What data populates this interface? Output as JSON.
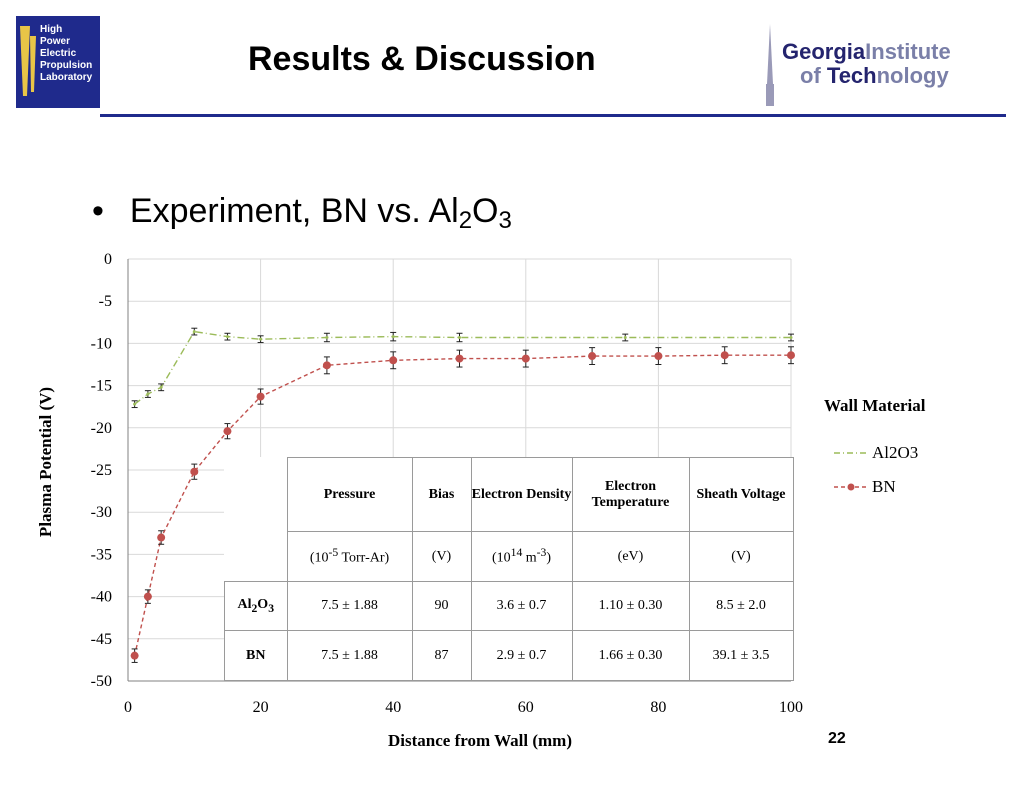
{
  "header": {
    "lab_logo_text": [
      "High",
      "Power",
      "Electric",
      "Propulsion",
      "Laboratory"
    ],
    "title": "Results & Discussion",
    "gt_logo_line1_bold": "Georgia",
    "gt_logo_line1_light": "Institute",
    "gt_logo_line2_pre": "of ",
    "gt_logo_line2_bold": "Tech",
    "gt_logo_line2_light": "nology",
    "rule_color": "#1f2a8c"
  },
  "bullet": {
    "text_pre": "Experiment, BN vs. Al",
    "sub1": "2",
    "mid": "O",
    "sub2": "3"
  },
  "page_number": "22",
  "chart_data": {
    "type": "line",
    "xlabel": "Distance from Wall (mm)",
    "ylabel": "Plasma Potential (V)",
    "xlim": [
      0,
      100
    ],
    "ylim": [
      -50,
      0
    ],
    "xticks": [
      "0",
      "20",
      "40",
      "60",
      "80",
      "100"
    ],
    "yticks": [
      "0",
      "-5",
      "-10",
      "-15",
      "-20",
      "-25",
      "-30",
      "-35",
      "-40",
      "-45",
      "-50"
    ],
    "grid": true,
    "legend_title": "Wall Material",
    "legend_position": "right",
    "series": [
      {
        "name": "Al2O3",
        "color": "#9bbb59",
        "style": "dash-dot",
        "x": [
          1,
          3,
          5,
          10,
          15,
          20,
          30,
          40,
          50,
          75,
          100
        ],
        "y": [
          -17.2,
          -16.0,
          -15.2,
          -8.6,
          -9.2,
          -9.5,
          -9.3,
          -9.2,
          -9.3,
          -9.3,
          -9.3
        ],
        "err": [
          0.4,
          0.4,
          0.4,
          0.4,
          0.4,
          0.4,
          0.5,
          0.5,
          0.5,
          0.4,
          0.4
        ],
        "extra_x": [
          60,
          70,
          80,
          90
        ],
        "extra_y": [
          -9.3,
          -9.3,
          -9.3,
          -9.3
        ]
      },
      {
        "name": "BN",
        "color": "#c0504d",
        "style": "dashed-markers",
        "x": [
          1,
          3,
          5,
          10,
          15,
          20,
          30,
          40,
          50,
          60,
          70,
          80,
          90,
          100
        ],
        "y": [
          -47.0,
          -40.0,
          -33.0,
          -25.2,
          -20.4,
          -16.3,
          -12.6,
          -12.0,
          -11.8,
          -11.8,
          -11.5,
          -11.5,
          -11.4,
          -11.4
        ],
        "err": [
          0.8,
          0.8,
          0.8,
          0.9,
          0.9,
          0.9,
          1.0,
          1.0,
          1.0,
          1.0,
          1.0,
          1.0,
          1.0,
          1.0
        ]
      }
    ]
  },
  "table": {
    "headers": [
      "Pressure",
      "Bias",
      "Electron Density",
      "Electron Temperature",
      "Sheath Voltage"
    ],
    "units": [
      "(10-5 Torr-Ar)",
      "(V)",
      "(1014 m-3)",
      "(eV)",
      "(V)"
    ],
    "rows": [
      {
        "label": "Al2O3",
        "values": [
          "7.5 ± 1.88",
          "90",
          "3.6 ± 0.7",
          "1.10 ± 0.30",
          "8.5 ± 2.0"
        ]
      },
      {
        "label": "BN",
        "values": [
          "7.5 ± 1.88",
          "87",
          "2.9 ± 0.7",
          "1.66 ± 0.30",
          "39.1 ± 3.5"
        ]
      }
    ]
  }
}
